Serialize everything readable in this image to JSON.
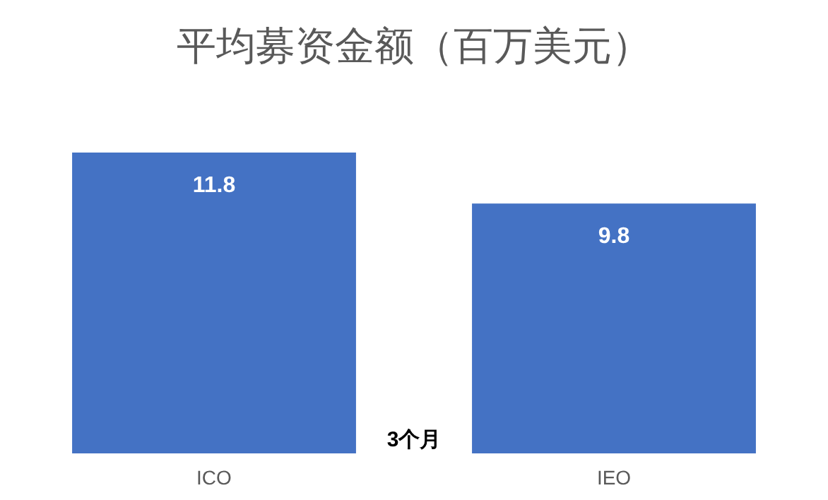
{
  "chart_data": {
    "type": "bar",
    "title": "平均募资金额（百万美元）",
    "categories": [
      "ICO",
      "IEO"
    ],
    "values": [
      11.8,
      9.8
    ],
    "color": "#4472c4",
    "data_labels": true,
    "annotations": [
      "3个月"
    ]
  }
}
